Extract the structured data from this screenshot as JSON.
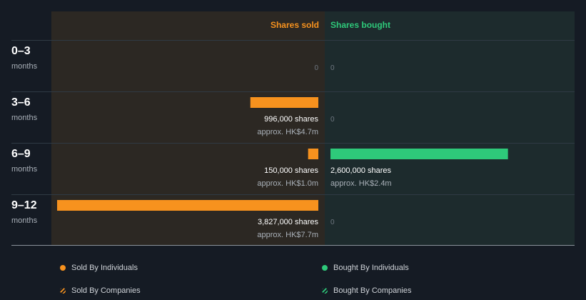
{
  "colors": {
    "background": "#151b24",
    "sold_panel": "#2c2823",
    "bought_panel": "#1d2b2d",
    "sold": "#f7921e",
    "bought": "#2ec97a",
    "divider": "#2f3a44",
    "axis": "#8a929b"
  },
  "chart_data": {
    "type": "bar",
    "headers": {
      "sold": "Shares sold",
      "bought": "Shares bought"
    },
    "periods": [
      {
        "label": "0–3",
        "unit": "months",
        "sold": {
          "shares": 0,
          "text": "0",
          "approx": ""
        },
        "bought": {
          "shares": 0,
          "text": "0",
          "approx": ""
        }
      },
      {
        "label": "3–6",
        "unit": "months",
        "sold": {
          "shares": 996000,
          "text": "996,000 shares",
          "approx": "approx. HK$4.7m"
        },
        "bought": {
          "shares": 0,
          "text": "0",
          "approx": ""
        }
      },
      {
        "label": "6–9",
        "unit": "months",
        "sold": {
          "shares": 150000,
          "text": "150,000 shares",
          "approx": "approx. HK$1.0m"
        },
        "bought": {
          "shares": 2600000,
          "text": "2,600,000 shares",
          "approx": "approx. HK$2.4m"
        }
      },
      {
        "label": "9–12",
        "unit": "months",
        "sold": {
          "shares": 3827000,
          "text": "3,827,000 shares",
          "approx": "approx. HK$7.7m"
        },
        "bought": {
          "shares": 0,
          "text": "0",
          "approx": ""
        }
      }
    ],
    "max_shares": 3827000
  },
  "legend": {
    "sold_individuals": "Sold By Individuals",
    "sold_companies": "Sold By Companies",
    "bought_individuals": "Bought By Individuals",
    "bought_companies": "Bought By Companies"
  }
}
